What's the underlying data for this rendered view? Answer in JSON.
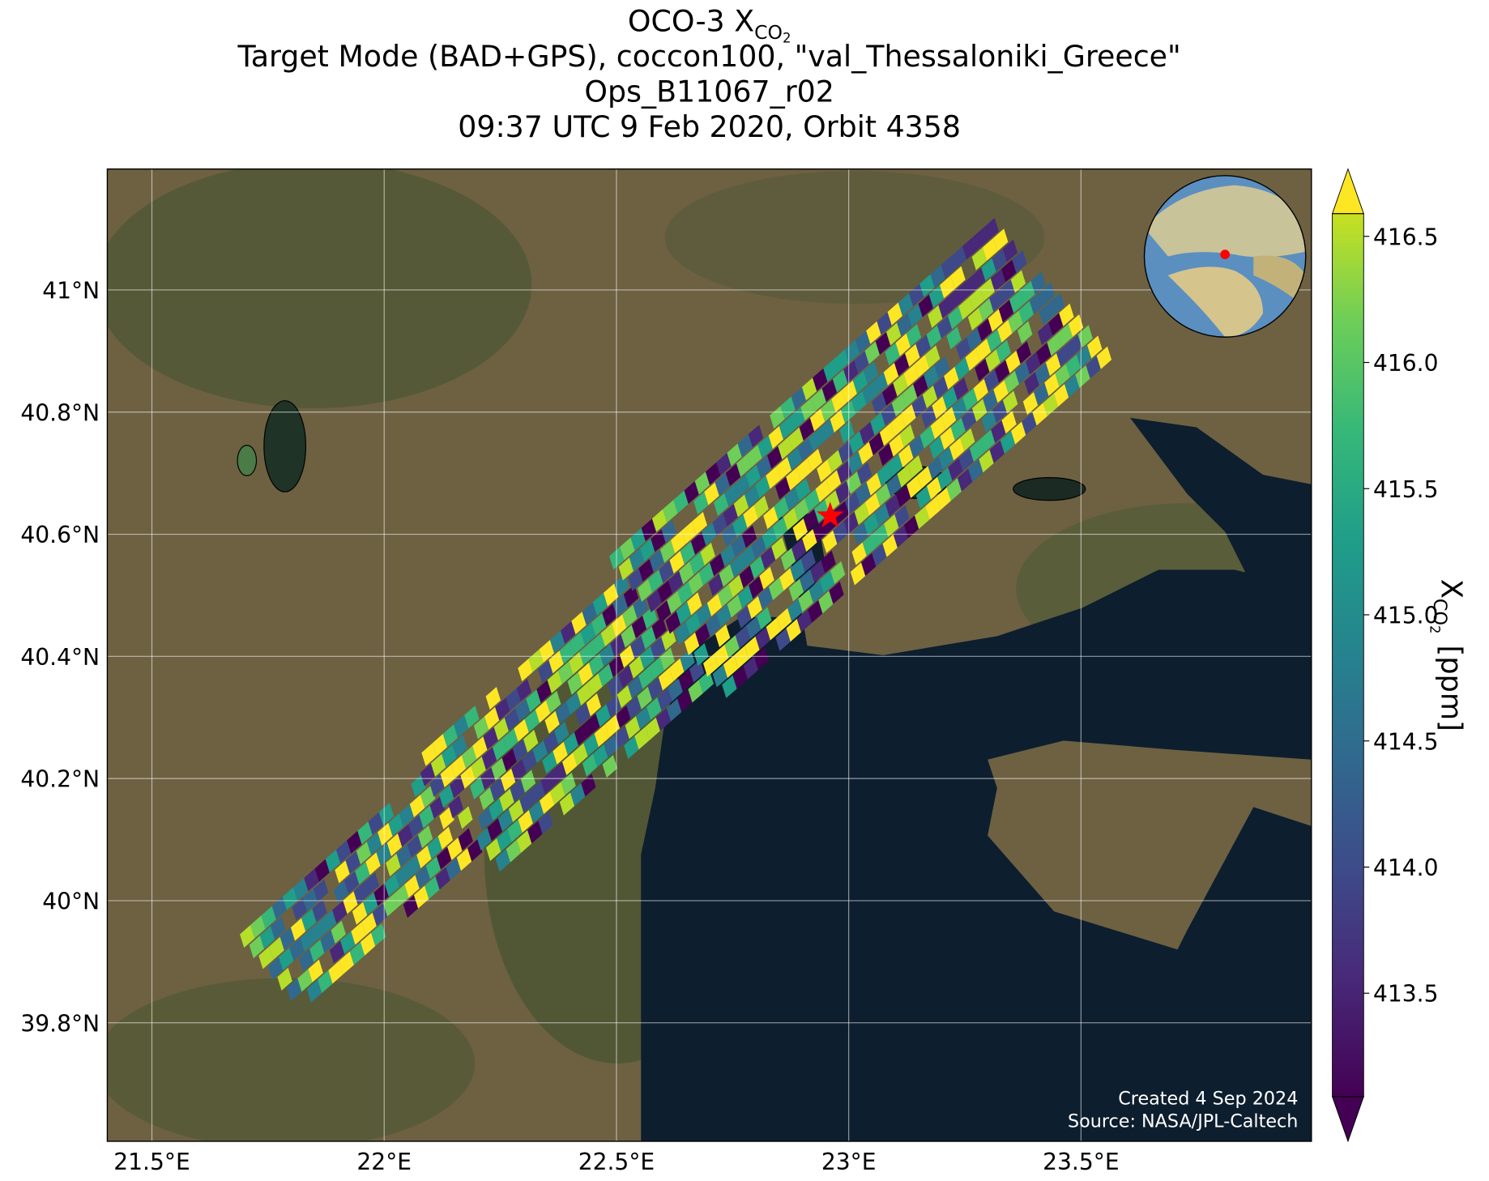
{
  "title": {
    "line1": {
      "text": "OCO-3 X",
      "sub": "CO",
      "subsub": "2"
    },
    "lines": [
      "Target Mode (BAD+GPS), coccon100, \"val_Thessaloniki_Greece\"",
      "Ops_B11067_r02",
      "09:37 UTC 9 Feb 2020, Orbit 4358"
    ]
  },
  "map": {
    "xlim": [
      21.404,
      23.996
    ],
    "ylim": [
      39.606,
      41.198
    ],
    "grid": true,
    "xticks": [
      {
        "value": 21.5,
        "label": "21.5°E"
      },
      {
        "value": 22,
        "label": "22°E"
      },
      {
        "value": 22.5,
        "label": "22.5°E"
      },
      {
        "value": 23,
        "label": "23°E"
      },
      {
        "value": 23.5,
        "label": "23.5°E"
      }
    ],
    "yticks": [
      {
        "value": 39.8,
        "label": "39.8°N"
      },
      {
        "value": 40,
        "label": "40°N"
      },
      {
        "value": 40.2,
        "label": "40.2°N"
      },
      {
        "value": 40.4,
        "label": "40.4°N"
      },
      {
        "value": 40.6,
        "label": "40.6°N"
      },
      {
        "value": 40.8,
        "label": "40.8°N"
      },
      {
        "value": 41,
        "label": "41°N"
      }
    ],
    "site": {
      "lon": 22.96,
      "lat": 40.63,
      "color": "#ff0000"
    }
  },
  "colorbar": {
    "label": {
      "text": "X",
      "sub": "CO",
      "subsub": "2",
      "unit": "[ppm]"
    },
    "lim": [
      413.09,
      416.59
    ],
    "colormap": "viridis",
    "ticks": [
      413.5,
      {
        "value": 414,
        "label": "414.0"
      },
      414.5,
      {
        "value": 415,
        "label": "415.0"
      },
      415.5,
      {
        "value": 416,
        "label": "416.0"
      },
      416.5
    ]
  },
  "credits": [
    "Created 4 Sep 2024",
    "Source: NASA/JPL-Caltech"
  ]
}
